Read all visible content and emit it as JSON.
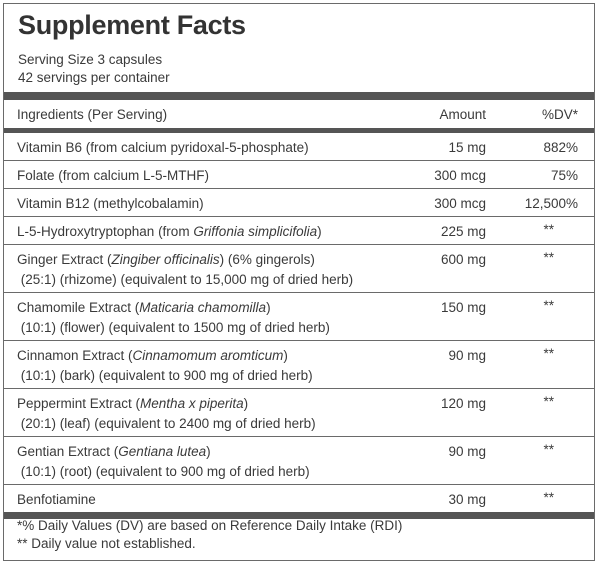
{
  "title": "Supplement Facts",
  "serving_size": "Serving Size 3 capsules",
  "servings_per_container": "42 servings per container",
  "header": {
    "ingredients": "Ingredients (Per Serving)",
    "amount": "Amount",
    "dv": "%DV*"
  },
  "rows": [
    {
      "line1": [
        {
          "t": "Vitamin B6 (from calcium pyridoxal-5-phosphate)"
        }
      ],
      "line2": null,
      "amount": "15 mg",
      "dv": "882%"
    },
    {
      "line1": [
        {
          "t": "Folate (from calcium L-5-MTHF)"
        }
      ],
      "line2": null,
      "amount": "300 mcg",
      "dv": "75%"
    },
    {
      "line1": [
        {
          "t": "Vitamin B12 (methylcobalamin)"
        }
      ],
      "line2": null,
      "amount": "300 mcg",
      "dv": "12,500%"
    },
    {
      "line1": [
        {
          "t": "L-5-Hydroxytryptophan  (from "
        },
        {
          "t": "Griffonia simplicifolia",
          "i": true
        },
        {
          "t": ")"
        }
      ],
      "line2": null,
      "amount": "225 mg",
      "dv": "**"
    },
    {
      "line1": [
        {
          "t": "Ginger Extract ("
        },
        {
          "t": "Zingiber officinalis",
          "i": true
        },
        {
          "t": ") (6% gingerols)"
        }
      ],
      "line2": " (25:1) (rhizome) (equivalent to 15,000 mg of dried herb)",
      "amount": "600 mg",
      "dv": "**"
    },
    {
      "line1": [
        {
          "t": "Chamomile Extract ("
        },
        {
          "t": "Maticaria chamomilla",
          "i": true
        },
        {
          "t": ")"
        }
      ],
      "line2": " (10:1) (flower) (equivalent to 1500 mg of dried herb)",
      "amount": "150 mg",
      "dv": "**"
    },
    {
      "line1": [
        {
          "t": "Cinnamon Extract ("
        },
        {
          "t": "Cinnamomum aromticum",
          "i": true
        },
        {
          "t": ")"
        }
      ],
      "line2": " (10:1) (bark) (equivalent to 900 mg of dried herb)",
      "amount": "90 mg",
      "dv": "**"
    },
    {
      "line1": [
        {
          "t": "Peppermint Extract ("
        },
        {
          "t": "Mentha x piperita",
          "i": true
        },
        {
          "t": ")"
        }
      ],
      "line2": " (20:1) (leaf) (equivalent to 2400 mg of dried herb)",
      "amount": "120 mg",
      "dv": "**"
    },
    {
      "line1": [
        {
          "t": "Gentian Extract ("
        },
        {
          "t": "Gentiana lutea",
          "i": true
        },
        {
          "t": ")"
        }
      ],
      "line2": " (10:1) (root) (equivalent to 900 mg of dried herb)",
      "amount": "90 mg",
      "dv": "**"
    },
    {
      "line1": [
        {
          "t": "Benfotiamine"
        }
      ],
      "line2": null,
      "amount": "30 mg",
      "dv": "**"
    }
  ],
  "footnotes": [
    "*% Daily Values (DV) are based on Reference Daily Intake (RDI)",
    "** Daily value not established."
  ],
  "colors": {
    "bar": "#555555",
    "text": "#3a3a3a",
    "border": "#6a6a6a"
  }
}
